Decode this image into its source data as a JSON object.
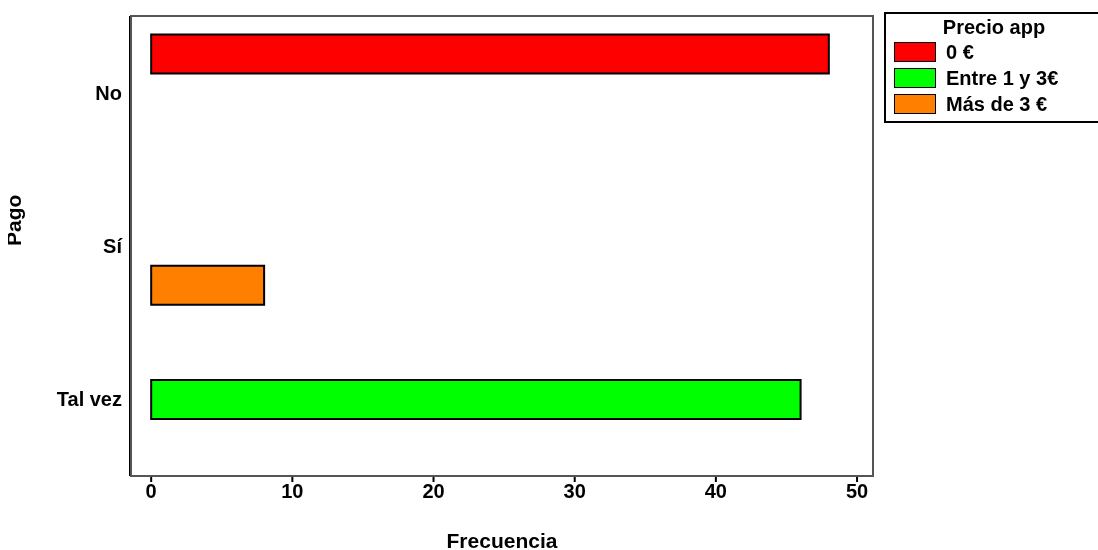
{
  "chart_data": {
    "type": "bar",
    "orientation": "horizontal",
    "xlabel": "Frecuencia",
    "ylabel": "Pago",
    "legend_title": "Precio app",
    "categories": [
      "No",
      "Sí",
      "Tal vez"
    ],
    "series": [
      {
        "name": "0 €",
        "color": "#ff0000",
        "values": [
          48,
          0,
          0
        ]
      },
      {
        "name": "Entre 1 y 3€",
        "color": "#00ff00",
        "values": [
          0,
          0,
          46
        ]
      },
      {
        "name": "Más de 3 €",
        "color": "#ff8000",
        "values": [
          0,
          8,
          0
        ]
      }
    ],
    "xlim": [
      -1.5,
      51.2
    ],
    "xticks": [
      0,
      10,
      20,
      30,
      40,
      50
    ],
    "grid": false,
    "legend": "top right"
  }
}
